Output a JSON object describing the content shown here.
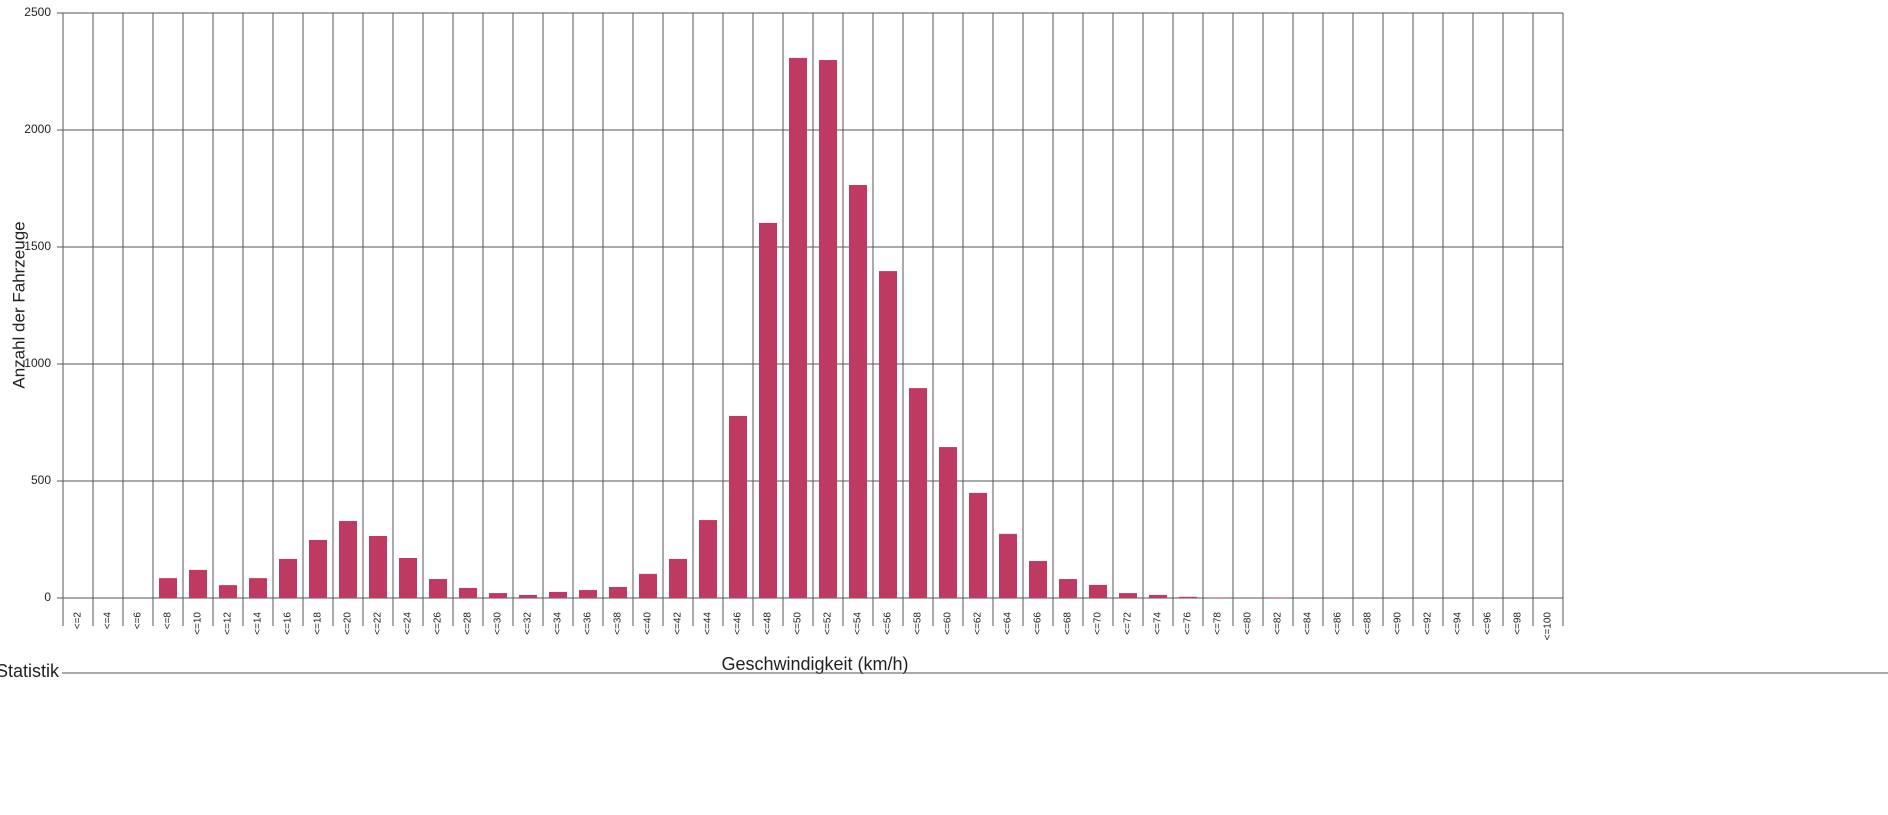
{
  "chart_data": {
    "type": "bar",
    "x_label": "Geschwindigkeit (km/h)",
    "y_label": "Anzahl der Fahrzeuge",
    "annotations": [
      "Statistik"
    ],
    "categories": [
      "<=2",
      "<=4",
      "<=6",
      "<=8",
      "<=10",
      "<=12",
      "<=14",
      "<=16",
      "<=18",
      "<=20",
      "<=22",
      "<=24",
      "<=26",
      "<=28",
      "<=30",
      "<=32",
      "<=34",
      "<=36",
      "<=38",
      "<=40",
      "<=42",
      "<=44",
      "<=46",
      "<=48",
      "<=50",
      "<=52",
      "<=54",
      "<=56",
      "<=58",
      "<=60",
      "<=62",
      "<=64",
      "<=66",
      "<=68",
      "<=70",
      "<=72",
      "<=74",
      "<=76",
      "<=78",
      "<=80",
      "<=82",
      "<=84",
      "<=86",
      "<=88",
      "<=90",
      "<=92",
      "<=94",
      "<=96",
      "<=98",
      "<=100"
    ],
    "values": [
      0,
      0,
      0,
      85,
      120,
      55,
      85,
      167,
      248,
      329,
      265,
      171,
      81,
      43,
      21,
      13,
      26,
      34,
      47,
      103,
      167,
      333,
      778,
      1603,
      2308,
      2299,
      1765,
      1397,
      897,
      645,
      449,
      274,
      158,
      81,
      56,
      21,
      13,
      5,
      2,
      1,
      2,
      1,
      1,
      0,
      1,
      0,
      0,
      0,
      0,
      0
    ],
    "color": "#bf3a63",
    "ylim": [
      0,
      2500
    ],
    "yticks": [
      0,
      500,
      1000,
      1500,
      2000,
      2500
    ],
    "grid": true
  }
}
